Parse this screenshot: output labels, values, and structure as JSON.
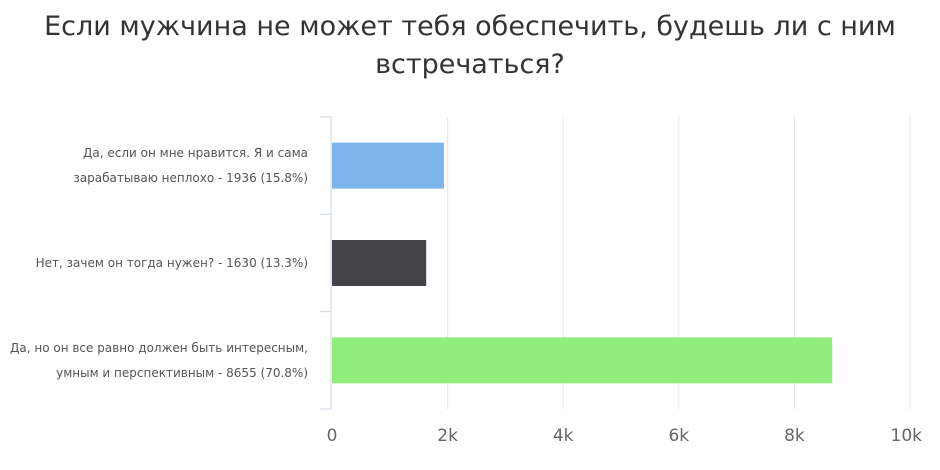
{
  "chart_data": {
    "type": "bar",
    "orientation": "horizontal",
    "title_lines": [
      "Если мужчина не может тебя обеспечить, будешь ли с ним",
      "встречаться?"
    ],
    "categories": [
      {
        "label_lines": [
          "Да, если он мне нравится. Я и сама",
          "зарабатываю неплохо - 1936 (15.8%)"
        ],
        "value": 1936,
        "color": "#7cb5ec"
      },
      {
        "label_lines": [
          "Нет, зачем он тогда нужен? - 1630 (13.3%)"
        ],
        "value": 1630,
        "color": "#434348"
      },
      {
        "label_lines": [
          "Да, но он все равно должен быть интересным,",
          "умным и перспективным - 8655 (70.8%)"
        ],
        "value": 8655,
        "color": "#90ed7d"
      }
    ],
    "x_ticks": [
      "0",
      "2k",
      "4k",
      "6k",
      "8k",
      "10k"
    ],
    "x_tick_values": [
      0,
      2000,
      4000,
      6000,
      8000,
      10000
    ],
    "xlim": [
      0,
      10000
    ],
    "grid": true,
    "gridline_color": "#e6e6e6",
    "axis_color": "#ccd6eb"
  }
}
